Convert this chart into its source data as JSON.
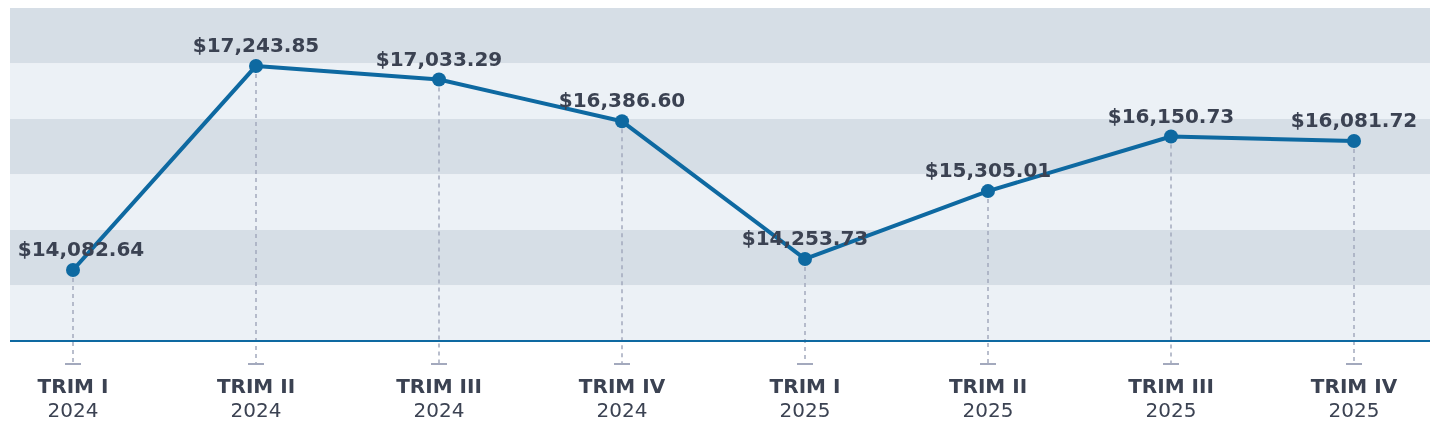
{
  "chart_data": {
    "type": "line",
    "categories": [
      "TRIM I\n2024",
      "TRIM II\n2024",
      "TRIM III\n2024",
      "TRIM IV\n2024",
      "TRIM I\n2025",
      "TRIM II\n2025",
      "TRIM III\n2025",
      "TRIM IV\n2025"
    ],
    "series": [
      {
        "color": "#0e69a1",
        "values": [
          14082.64,
          17243.85,
          17033.29,
          16386.6,
          14253.73,
          15305.01,
          16150.73,
          16081.72
        ],
        "value_labels": [
          "$14,082.64",
          "$17,243.85",
          "$17,033.29",
          "$16,386.60",
          "$14,253.73",
          "$15,305.01",
          "$16,150.73",
          "$16,081.72"
        ]
      }
    ],
    "marker": "circle",
    "line_style": "solid",
    "grid": "x"
  }
}
